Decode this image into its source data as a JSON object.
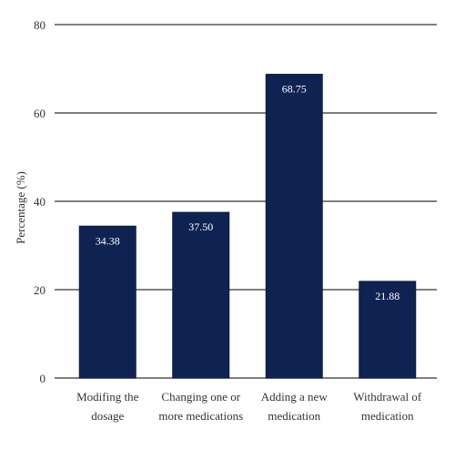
{
  "chart_data": {
    "type": "bar",
    "ylabel": "Percentage (%)",
    "ylim": [
      0,
      80
    ],
    "yticks": [
      "0",
      "20",
      "40",
      "60",
      "80"
    ],
    "grid": true,
    "categories": [
      [
        "Modifing the",
        "dosage"
      ],
      [
        "Changing one or",
        "more medications"
      ],
      [
        "Adding a new",
        "medication"
      ],
      [
        "Withdrawal of",
        "medication"
      ]
    ],
    "values": [
      34.38,
      37.5,
      68.75,
      21.88
    ],
    "value_labels": [
      "34.38",
      "37.50",
      "68.75",
      "21.88"
    ],
    "colors": {
      "bar": "#0f2352",
      "grid": "#555555",
      "axis_text": "#333333",
      "value_text": "#ffffff"
    }
  }
}
